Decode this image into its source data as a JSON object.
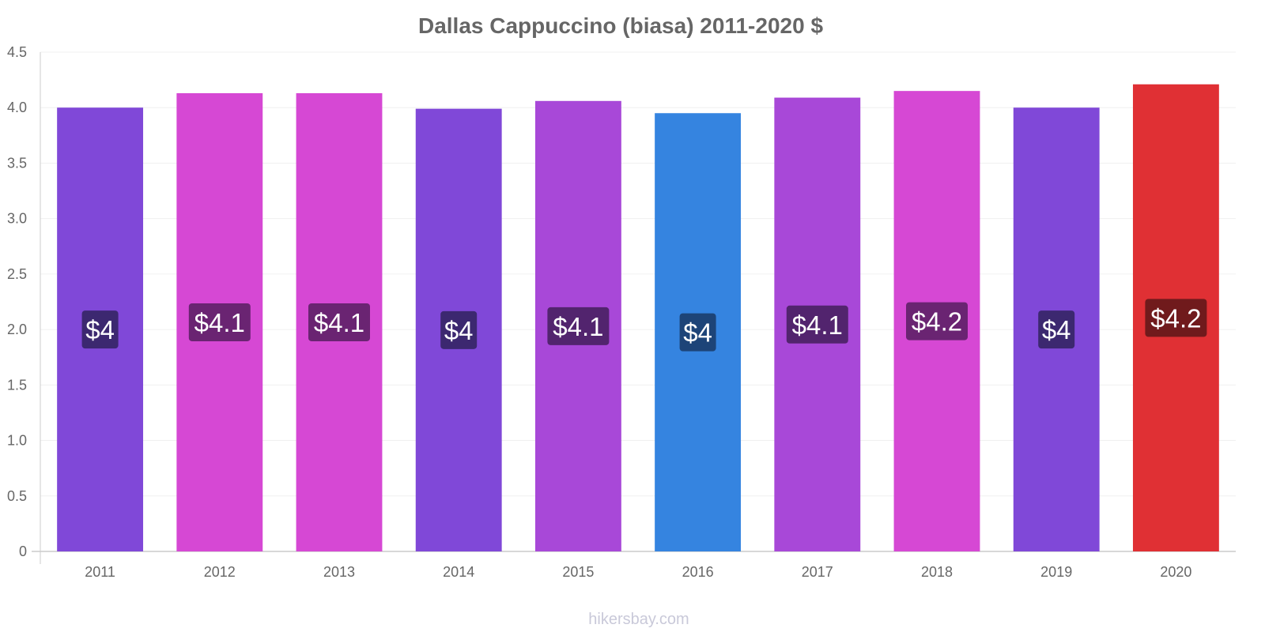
{
  "chart_data": {
    "type": "bar",
    "title": "Dallas Cappuccino (biasa) 2011-2020 $",
    "xlabel": "",
    "ylabel": "",
    "ylim": [
      0,
      4.5
    ],
    "yticks": [
      "0",
      "0.5",
      "1.0",
      "1.5",
      "2.0",
      "2.5",
      "3.0",
      "3.5",
      "4.0",
      "4.5"
    ],
    "grid": true,
    "categories": [
      "2011",
      "2012",
      "2013",
      "2014",
      "2015",
      "2016",
      "2017",
      "2018",
      "2019",
      "2020"
    ],
    "values": [
      4.0,
      4.13,
      4.13,
      3.99,
      4.06,
      3.95,
      4.09,
      4.15,
      4.0,
      4.21
    ],
    "data_labels": [
      "$4",
      "$4.1",
      "$4.1",
      "$4",
      "$4.1",
      "$4",
      "$4.1",
      "$4.2",
      "$4",
      "$4.2"
    ],
    "colors": [
      "#8048d8",
      "#d648d4",
      "#d648d4",
      "#8048d8",
      "#a848d8",
      "#3584e0",
      "#a848d8",
      "#d648d4",
      "#8048d8",
      "#e03034"
    ],
    "label_bg_colors": [
      "#3c2870",
      "#6a2472",
      "#6a2472",
      "#3c2870",
      "#52246e",
      "#1d4478",
      "#52246e",
      "#6a2472",
      "#3c2870",
      "#701a1c"
    ]
  },
  "footer": "hikersbay.com"
}
